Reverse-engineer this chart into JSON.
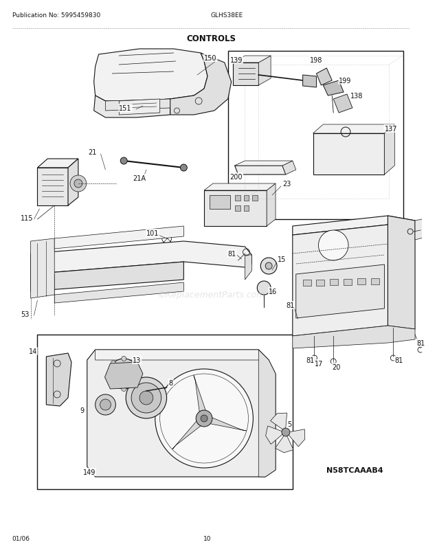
{
  "title": "CONTROLS",
  "pub_no": "Publication No: 5995459830",
  "model": "GLHS38EE",
  "date": "01/06",
  "page": "10",
  "diagram_id": "N58TCAAAB4",
  "bg_color": "#ffffff",
  "fig_width": 6.2,
  "fig_height": 8.03,
  "dpi": 100,
  "header_fontsize": 6.5,
  "title_fontsize": 8.5,
  "footer_fontsize": 6.5,
  "label_fontsize": 7.0,
  "watermark": "©ReplacementParts.com"
}
